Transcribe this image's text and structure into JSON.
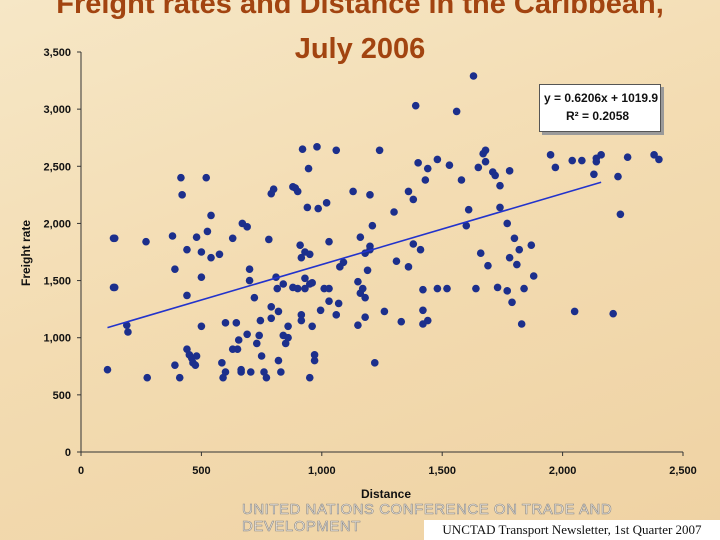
{
  "chart_data": {
    "type": "scatter",
    "title_line1": "Freight rates and Distance in the Caribbean,",
    "title_line2": "July 2006",
    "xlabel": "Distance",
    "ylabel": "Freight rate",
    "xlim": [
      0,
      2500
    ],
    "ylim": [
      0,
      3500
    ],
    "x_ticks": [
      "0",
      "500",
      "1,000",
      "1,500",
      "2,000",
      "2,500"
    ],
    "y_ticks": [
      "0",
      "500",
      "1,000",
      "1,500",
      "2,000",
      "2,500",
      "3,000",
      "3,500"
    ],
    "grid": false,
    "point_color": "#1c2f8c",
    "trendline_color": "#2233cc",
    "trendline": {
      "slope": 0.6206,
      "intercept": 1019.9,
      "x_range": [
        110,
        2160
      ]
    },
    "equation": "y = 0.6206x + 1019.9",
    "r_squared": "R² = 0.2058",
    "points": [
      [
        110,
        720
      ],
      [
        135,
        1870
      ],
      [
        140,
        1870
      ],
      [
        135,
        1440
      ],
      [
        140,
        1440
      ],
      [
        190,
        1110
      ],
      [
        195,
        1050
      ],
      [
        270,
        1840
      ],
      [
        275,
        650
      ],
      [
        380,
        1890
      ],
      [
        390,
        1600
      ],
      [
        390,
        760
      ],
      [
        410,
        650
      ],
      [
        415,
        2400
      ],
      [
        420,
        2250
      ],
      [
        440,
        1770
      ],
      [
        440,
        1370
      ],
      [
        440,
        900
      ],
      [
        450,
        850
      ],
      [
        465,
        780
      ],
      [
        460,
        820
      ],
      [
        475,
        760
      ],
      [
        480,
        840
      ],
      [
        480,
        1880
      ],
      [
        500,
        1750
      ],
      [
        500,
        1530
      ],
      [
        500,
        1100
      ],
      [
        520,
        2400
      ],
      [
        525,
        1930
      ],
      [
        540,
        2070
      ],
      [
        540,
        1700
      ],
      [
        575,
        1730
      ],
      [
        585,
        780
      ],
      [
        590,
        650
      ],
      [
        600,
        1130
      ],
      [
        600,
        700
      ],
      [
        630,
        900
      ],
      [
        630,
        1870
      ],
      [
        645,
        1130
      ],
      [
        650,
        900
      ],
      [
        655,
        980
      ],
      [
        665,
        700
      ],
      [
        665,
        720
      ],
      [
        670,
        2000
      ],
      [
        690,
        1970
      ],
      [
        690,
        1030
      ],
      [
        700,
        1600
      ],
      [
        700,
        1500
      ],
      [
        705,
        700
      ],
      [
        720,
        1350
      ],
      [
        730,
        950
      ],
      [
        740,
        1020
      ],
      [
        745,
        1150
      ],
      [
        750,
        840
      ],
      [
        760,
        700
      ],
      [
        770,
        650
      ],
      [
        780,
        1860
      ],
      [
        790,
        1270
      ],
      [
        790,
        1170
      ],
      [
        790,
        2260
      ],
      [
        800,
        2300
      ],
      [
        810,
        1530
      ],
      [
        815,
        1430
      ],
      [
        820,
        800
      ],
      [
        820,
        1230
      ],
      [
        830,
        700
      ],
      [
        840,
        1470
      ],
      [
        840,
        1020
      ],
      [
        850,
        950
      ],
      [
        860,
        1000
      ],
      [
        860,
        1100
      ],
      [
        880,
        2320
      ],
      [
        880,
        1440
      ],
      [
        890,
        2310
      ],
      [
        900,
        2280
      ],
      [
        900,
        1430
      ],
      [
        910,
        1810
      ],
      [
        915,
        1700
      ],
      [
        915,
        1200
      ],
      [
        915,
        1150
      ],
      [
        920,
        2650
      ],
      [
        930,
        1520
      ],
      [
        930,
        1430
      ],
      [
        930,
        1750
      ],
      [
        940,
        2140
      ],
      [
        945,
        2480
      ],
      [
        950,
        1730
      ],
      [
        950,
        1470
      ],
      [
        950,
        650
      ],
      [
        960,
        1480
      ],
      [
        960,
        1100
      ],
      [
        970,
        800
      ],
      [
        970,
        850
      ],
      [
        980,
        2670
      ],
      [
        985,
        2130
      ],
      [
        995,
        1240
      ],
      [
        1010,
        1430
      ],
      [
        1020,
        2180
      ],
      [
        1030,
        1840
      ],
      [
        1030,
        1320
      ],
      [
        1030,
        1430
      ],
      [
        1060,
        2640
      ],
      [
        1060,
        1200
      ],
      [
        1070,
        1300
      ],
      [
        1075,
        1620
      ],
      [
        1090,
        1660
      ],
      [
        1130,
        2280
      ],
      [
        1150,
        1490
      ],
      [
        1150,
        1110
      ],
      [
        1160,
        1880
      ],
      [
        1160,
        1390
      ],
      [
        1170,
        1430
      ],
      [
        1180,
        1740
      ],
      [
        1180,
        1350
      ],
      [
        1180,
        1180
      ],
      [
        1190,
        1590
      ],
      [
        1200,
        1770
      ],
      [
        1200,
        2250
      ],
      [
        1200,
        1800
      ],
      [
        1210,
        1980
      ],
      [
        1220,
        780
      ],
      [
        1240,
        2640
      ],
      [
        1260,
        1230
      ],
      [
        1300,
        2100
      ],
      [
        1310,
        1670
      ],
      [
        1330,
        1140
      ],
      [
        1360,
        1620
      ],
      [
        1360,
        2280
      ],
      [
        1380,
        2210
      ],
      [
        1380,
        1820
      ],
      [
        1390,
        3030
      ],
      [
        1400,
        2530
      ],
      [
        1410,
        1770
      ],
      [
        1420,
        1420
      ],
      [
        1420,
        1120
      ],
      [
        1420,
        1240
      ],
      [
        1430,
        2380
      ],
      [
        1440,
        2480
      ],
      [
        1440,
        1150
      ],
      [
        1480,
        2560
      ],
      [
        1480,
        1430
      ],
      [
        1520,
        1430
      ],
      [
        1530,
        2510
      ],
      [
        1560,
        2980
      ],
      [
        1580,
        2380
      ],
      [
        1600,
        1980
      ],
      [
        1610,
        2120
      ],
      [
        1630,
        3290
      ],
      [
        1640,
        1430
      ],
      [
        1650,
        2490
      ],
      [
        1660,
        1740
      ],
      [
        1670,
        2610
      ],
      [
        1680,
        2640
      ],
      [
        1680,
        2540
      ],
      [
        1690,
        1630
      ],
      [
        1710,
        2450
      ],
      [
        1720,
        2420
      ],
      [
        1730,
        1440
      ],
      [
        1740,
        2140
      ],
      [
        1740,
        2330
      ],
      [
        1770,
        2000
      ],
      [
        1770,
        1410
      ],
      [
        1780,
        2460
      ],
      [
        1780,
        1700
      ],
      [
        1790,
        1310
      ],
      [
        1800,
        1870
      ],
      [
        1810,
        1640
      ],
      [
        1820,
        1770
      ],
      [
        1830,
        1120
      ],
      [
        1840,
        1430
      ],
      [
        1870,
        1810
      ],
      [
        1880,
        1540
      ],
      [
        1950,
        2600
      ],
      [
        1970,
        2490
      ],
      [
        2040,
        2550
      ],
      [
        2050,
        1230
      ],
      [
        2080,
        2550
      ],
      [
        2130,
        2430
      ],
      [
        2140,
        2570
      ],
      [
        2140,
        2540
      ],
      [
        2160,
        2600
      ],
      [
        2210,
        1210
      ],
      [
        2230,
        2410
      ],
      [
        2240,
        2080
      ],
      [
        2270,
        2580
      ],
      [
        2380,
        2600
      ],
      [
        2400,
        2560
      ]
    ]
  },
  "footer": {
    "banner": "UNITED NATIONS CONFERENCE ON TRADE AND DEVELOPMENT",
    "citation": "UNCTAD Transport Newsletter, 1st Quarter 2007"
  }
}
